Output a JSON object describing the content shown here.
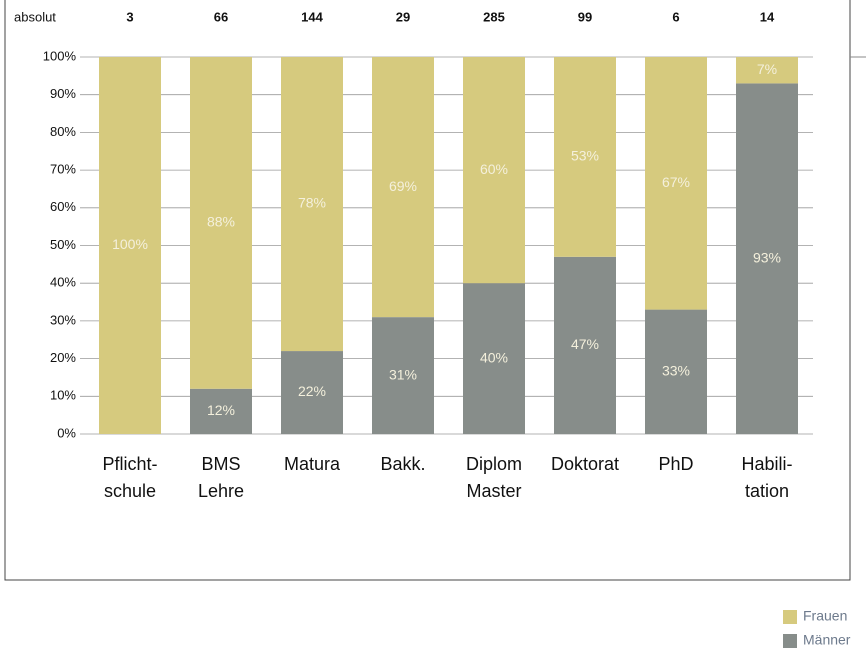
{
  "chart_data": {
    "type": "stacked_bar",
    "absolut": {
      "label": "absolut",
      "values": [
        3,
        66,
        144,
        29,
        285,
        99,
        6,
        14
      ]
    },
    "categories": [
      [
        "Pflicht-",
        "schule"
      ],
      [
        "BMS",
        "Lehre"
      ],
      [
        "Matura"
      ],
      [
        "Bakk."
      ],
      [
        "Diplom",
        "Master"
      ],
      [
        "Doktorat"
      ],
      [
        "PhD"
      ],
      [
        "Habili-",
        "tation"
      ]
    ],
    "series": [
      {
        "name": "Männer",
        "color": "#878d8a",
        "values": [
          0,
          12,
          22,
          31,
          40,
          47,
          33,
          93
        ],
        "value_labels": [
          null,
          "12%",
          "22%",
          "31%",
          "40%",
          "47%",
          "33%",
          "93%"
        ]
      },
      {
        "name": "Frauen",
        "color": "#d6ca7e",
        "values": [
          100,
          88,
          78,
          69,
          60,
          53,
          67,
          7
        ],
        "value_labels": [
          "100%",
          "88%",
          "78%",
          "69%",
          "60%",
          "53%",
          "67%",
          "7%"
        ]
      }
    ],
    "ylim": [
      0,
      100
    ],
    "yticks": [
      {
        "value": 0,
        "label": "0%"
      },
      {
        "value": 10,
        "label": "10%"
      },
      {
        "value": 20,
        "label": "20%"
      },
      {
        "value": 30,
        "label": "30%"
      },
      {
        "value": 40,
        "label": "40%"
      },
      {
        "value": 50,
        "label": "50%"
      },
      {
        "value": 60,
        "label": "60%"
      },
      {
        "value": 70,
        "label": "70%"
      },
      {
        "value": 80,
        "label": "80%"
      },
      {
        "value": 90,
        "label": "90%"
      },
      {
        "value": 100,
        "label": "100%"
      }
    ],
    "grid": true,
    "legend": "bottom-right"
  }
}
